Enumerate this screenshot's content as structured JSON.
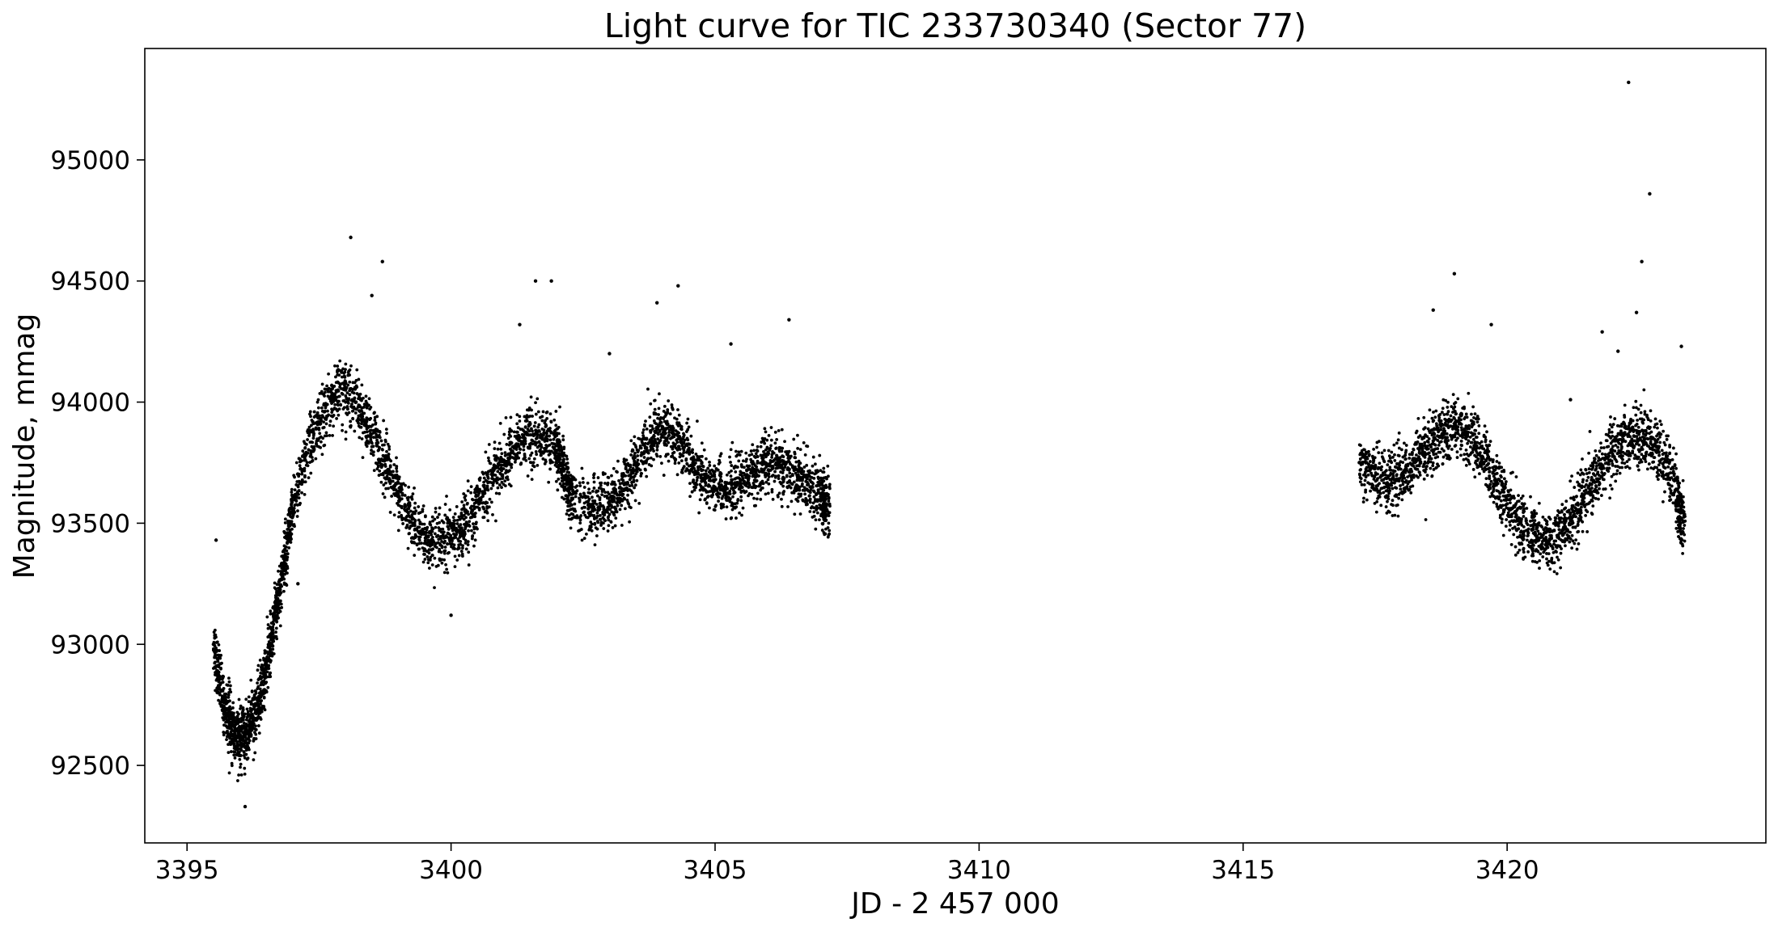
{
  "chart_data": {
    "type": "scatter",
    "title": "Light curve for TIC 233730340 (Sector 77)",
    "xlabel": "JD - 2 457 000",
    "ylabel": "Magnitude, mmag",
    "xlim": [
      3394.2,
      3424.9
    ],
    "ylim": [
      92180,
      95460
    ],
    "xticks": [
      3395,
      3400,
      3405,
      3410,
      3415,
      3420
    ],
    "yticks": [
      92500,
      93000,
      93500,
      94000,
      94500,
      95000
    ],
    "grid": false,
    "legend": "none",
    "marker_color": "#000000",
    "series": [
      {
        "points_x": [
          3395.5,
          3395.6,
          3395.7,
          3395.8,
          3395.9,
          3396.0,
          3396.1,
          3396.2,
          3396.3,
          3396.4,
          3396.5,
          3396.6,
          3396.7,
          3396.8,
          3396.9,
          3397.0,
          3397.2,
          3397.4,
          3397.6,
          3397.8,
          3398.0,
          3398.2,
          3398.4,
          3398.6,
          3398.8,
          3399.0,
          3399.2,
          3399.4,
          3399.6,
          3399.8,
          3400.0,
          3400.2,
          3400.4,
          3400.6,
          3400.8,
          3401.0,
          3401.2,
          3401.4,
          3401.6,
          3401.8,
          3402.0,
          3402.1,
          3402.2,
          3402.3,
          3402.6,
          3402.8,
          3403.0,
          3403.2,
          3403.4,
          3403.6,
          3403.8,
          3404.0,
          3404.2,
          3404.4,
          3404.6,
          3404.8,
          3405.0,
          3405.2,
          3405.4,
          3405.6,
          3405.8,
          3406.0,
          3406.2,
          3406.4,
          3406.6,
          3406.8,
          3407.0,
          3407.1,
          3417.2,
          3417.4,
          3417.6,
          3417.8,
          3418.0,
          3418.2,
          3418.4,
          3418.6,
          3418.8,
          3419.0,
          3419.2,
          3419.4,
          3419.6,
          3419.8,
          3420.0,
          3420.2,
          3420.4,
          3420.6,
          3420.8,
          3421.0,
          3421.2,
          3421.4,
          3421.6,
          3421.8,
          3422.0,
          3422.2,
          3422.4,
          3422.6,
          3422.8,
          3423.0,
          3423.2,
          3423.3
        ],
        "points_y": [
          93000,
          92870,
          92760,
          92680,
          92630,
          92600,
          92620,
          92660,
          92720,
          92800,
          92900,
          93020,
          93150,
          93290,
          93420,
          93550,
          93720,
          93870,
          93960,
          94020,
          94050,
          94000,
          93920,
          93820,
          93720,
          93620,
          93530,
          93460,
          93420,
          93410,
          93430,
          93480,
          93550,
          93630,
          93700,
          93760,
          93810,
          93850,
          93870,
          93850,
          93800,
          93740,
          93660,
          93600,
          93560,
          93560,
          93580,
          93630,
          93700,
          93780,
          93850,
          93890,
          93870,
          93810,
          93740,
          93680,
          93640,
          93640,
          93660,
          93690,
          93720,
          93740,
          93740,
          93720,
          93690,
          93650,
          93610,
          93580,
          93750,
          93720,
          93690,
          93680,
          93700,
          93740,
          93790,
          93840,
          93880,
          93900,
          93880,
          93830,
          93760,
          93670,
          93580,
          93510,
          93460,
          93430,
          93430,
          93460,
          93510,
          93580,
          93660,
          93740,
          93800,
          93840,
          93860,
          93850,
          93820,
          93760,
          93640,
          93520
        ],
        "scatter_mmag": 110
      }
    ],
    "outliers_x": [
      3395.55,
      3396.1,
      3397.1,
      3398.1,
      3398.5,
      3398.7,
      3400.0,
      3401.3,
      3401.6,
      3401.9,
      3403.0,
      3403.9,
      3404.3,
      3405.3,
      3406.4,
      3418.6,
      3419.0,
      3419.7,
      3421.2,
      3421.8,
      3422.1,
      3422.3,
      3422.45,
      3422.55,
      3422.7,
      3423.3
    ],
    "outliers_y": [
      93430,
      92330,
      93250,
      94680,
      94440,
      94580,
      93120,
      94320,
      94500,
      94500,
      94200,
      94410,
      94480,
      94240,
      94340,
      94380,
      94530,
      94320,
      94010,
      94290,
      94210,
      95320,
      94370,
      94580,
      94860,
      94230
    ]
  }
}
